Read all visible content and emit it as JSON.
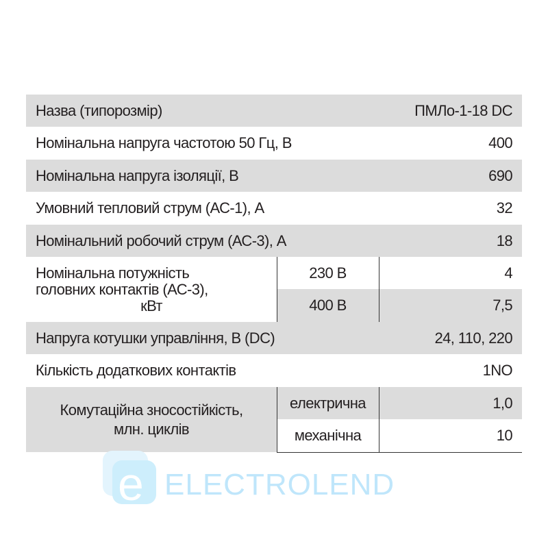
{
  "rows": [
    {
      "label": "Назва (типорозмір)",
      "value": "ПМЛо-1-18 DC"
    },
    {
      "label": "Номінальна напруга частотою 50 Гц, В",
      "value": "400"
    },
    {
      "label": "Номінальна напруга ізоляції, В",
      "value": "690"
    },
    {
      "label": "Умовний тепловий струм (АС-1), А",
      "value": "32"
    },
    {
      "label": "Номінальний робочий струм (АС-3), А",
      "value": "18"
    }
  ],
  "power": {
    "label_lines": [
      "Номінальна потужність",
      "головних контактів (АС-3),",
      "кВт"
    ],
    "sub": [
      {
        "label": "230 В",
        "value": "4"
      },
      {
        "label": "400 В",
        "value": "7,5"
      }
    ]
  },
  "rows2": [
    {
      "label": "Напруга котушки управління, В (DC)",
      "value": "24, 110, 220"
    },
    {
      "label": "Кількість додаткових контактів",
      "value": "1NO"
    }
  ],
  "wear": {
    "label_lines": [
      "Комутаційна зносостійкість,",
      "млн. циклів"
    ],
    "sub": [
      {
        "label": "електрична",
        "value": "1,0"
      },
      {
        "label": "механічна",
        "value": "10"
      }
    ]
  },
  "watermark": "ELECTROLEND",
  "colors": {
    "row_gray": "#dcdcdc",
    "watermark": "#bfe6fb"
  }
}
